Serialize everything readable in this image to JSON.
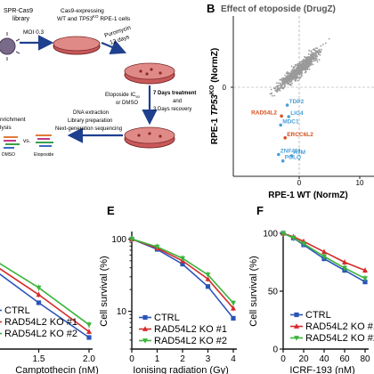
{
  "panels": {
    "A": {
      "steps": {
        "library": [
          "SPR-Cas9",
          "library"
        ],
        "moi": "MOI 0.3",
        "cells": [
          "Cas9-expressing",
          "WT and TP53KO RPE-1 cells"
        ],
        "cells_prefix": "WT and ",
        "cells_tp53": "TP53",
        "cells_ko": "KO",
        "cells_suffix": " RPE-1 cells",
        "puromycin": [
          "Puromycin",
          "12 days"
        ],
        "treatment_a": [
          "Etoposide IC50",
          "or DMSO"
        ],
        "treatment_a_main": "Etoposide IC",
        "treatment_a_sub": "50",
        "treatment_b": [
          "7 Days treatment",
          "and",
          "3 Days recovery"
        ],
        "seq": [
          "DNA extraction",
          "Library preparation",
          "Next-generation sequencing"
        ],
        "enrichment": [
          "nrichment",
          "lysis"
        ],
        "dmso": "DMSO",
        "vs": "vs.",
        "etoposide": "Etoposide"
      }
    },
    "B": {
      "letter": "B",
      "title": "Effect of etoposide (DrugZ)",
      "xlabel": "RPE-1 WT (NormZ)",
      "ylabel_prefix": "RPE-1 ",
      "ylabel_gene": "TP53",
      "ylabel_ko": "KO",
      "ylabel_suffix": " (NormZ)",
      "ytick_zero": "0",
      "xtick_zero": "0",
      "xtick_right": "10",
      "highlights": [
        {
          "label": "RAD54L2",
          "color": "#d4501c"
        },
        {
          "label": "TDP2",
          "color": "#4a9fd8"
        },
        {
          "label": "LIG4",
          "color": "#4a9fd8"
        },
        {
          "label": "MDC1",
          "color": "#4a9fd8"
        },
        {
          "label": "ERCC6L2",
          "color": "#d4501c"
        },
        {
          "label": "ZNF451",
          "color": "#4a9fd8"
        },
        {
          "label": "ATM",
          "color": "#4a9fd8"
        },
        {
          "label": "POLQ",
          "color": "#4a9fd8"
        }
      ]
    }
  },
  "chart_data": [
    {
      "panel": "B",
      "type": "scatter",
      "title": "Effect of etoposide (DrugZ)",
      "xlabel": "RPE-1 WT (NormZ)",
      "ylabel": "RPE-1 TP53KO (NormZ)",
      "highlighted_points": [
        {
          "label": "RAD54L2",
          "x": -2.4,
          "y": -5.6
        },
        {
          "label": "TDP2",
          "x": -1.6,
          "y": -3.9
        },
        {
          "label": "LIG4",
          "x": -1.4,
          "y": -5.7
        },
        {
          "label": "MDC1",
          "x": -2.5,
          "y": -7.0
        },
        {
          "label": "ERCC6L2",
          "x": -1.9,
          "y": -9.0
        },
        {
          "label": "ZNF451",
          "x": -2.8,
          "y": -11.6
        },
        {
          "label": "ATM",
          "x": -1.0,
          "y": -11.8
        },
        {
          "label": "POLQ",
          "x": -2.2,
          "y": -12.6
        }
      ]
    },
    {
      "panel": "D",
      "type": "line",
      "xlabel": "Camptothecin (nM)",
      "x_ticks": [
        "1.5",
        "2.0"
      ],
      "x": [
        0,
        0.5,
        1.0,
        1.5,
        2.0
      ],
      "xlim": [
        0,
        2.0
      ],
      "ylim": [
        0,
        100
      ],
      "series": [
        {
          "name": "CTRL",
          "color": "#2b55b8",
          "values": [
            100,
            93,
            72,
            40,
            10
          ]
        },
        {
          "name": "RAD54L2 KO #1",
          "color": "#d62a2a",
          "values": [
            100,
            94,
            76,
            47,
            15
          ]
        },
        {
          "name": "RAD54L2 KO #2",
          "color": "#3cb43c",
          "values": [
            100,
            95,
            80,
            53,
            21
          ]
        }
      ]
    },
    {
      "panel": "E",
      "type": "line",
      "letter": "E",
      "ylabel": "Cell survival (%)",
      "xlabel": "Ionising radiation (Gy)",
      "y_scale": "log",
      "y_ticks": [
        "100",
        "10"
      ],
      "x_ticks": [
        "0",
        "1",
        "2",
        "3",
        "4"
      ],
      "x": [
        0,
        1,
        2,
        3,
        4
      ],
      "ylim": [
        3,
        120
      ],
      "series": [
        {
          "name": "CTRL",
          "color": "#2b55b8",
          "values": [
            100,
            72,
            45,
            22,
            8
          ]
        },
        {
          "name": "RAD54L2 KO #1",
          "color": "#d62a2a",
          "values": [
            100,
            75,
            50,
            28,
            11
          ]
        },
        {
          "name": "RAD54L2 KO #2",
          "color": "#3cb43c",
          "values": [
            100,
            78,
            54,
            32,
            13
          ]
        }
      ]
    },
    {
      "panel": "F",
      "type": "line",
      "letter": "F",
      "ylabel": "Cell survival (%)",
      "xlabel": "ICRF-193 (nM)",
      "y_ticks": [
        "100",
        "50",
        "0"
      ],
      "x_ticks": [
        "0",
        "20",
        "40",
        "60",
        "80"
      ],
      "x": [
        0,
        10,
        20,
        40,
        60,
        80
      ],
      "xlim": [
        0,
        80
      ],
      "ylim": [
        0,
        100
      ],
      "series": [
        {
          "name": "CTRL",
          "color": "#2b55b8",
          "values": [
            100,
            96,
            90,
            78,
            68,
            58
          ]
        },
        {
          "name": "RAD54L2 KO #1",
          "color": "#d62a2a",
          "values": [
            100,
            97,
            93,
            84,
            75,
            68
          ]
        },
        {
          "name": "RAD54L2 KO #2",
          "color": "#3cb43c",
          "values": [
            100,
            96,
            91,
            80,
            70,
            61
          ]
        }
      ],
      "legend_labels": [
        "CTRL",
        "RAD54L2 KO #1",
        "RAD54L2 KO #2"
      ]
    }
  ]
}
